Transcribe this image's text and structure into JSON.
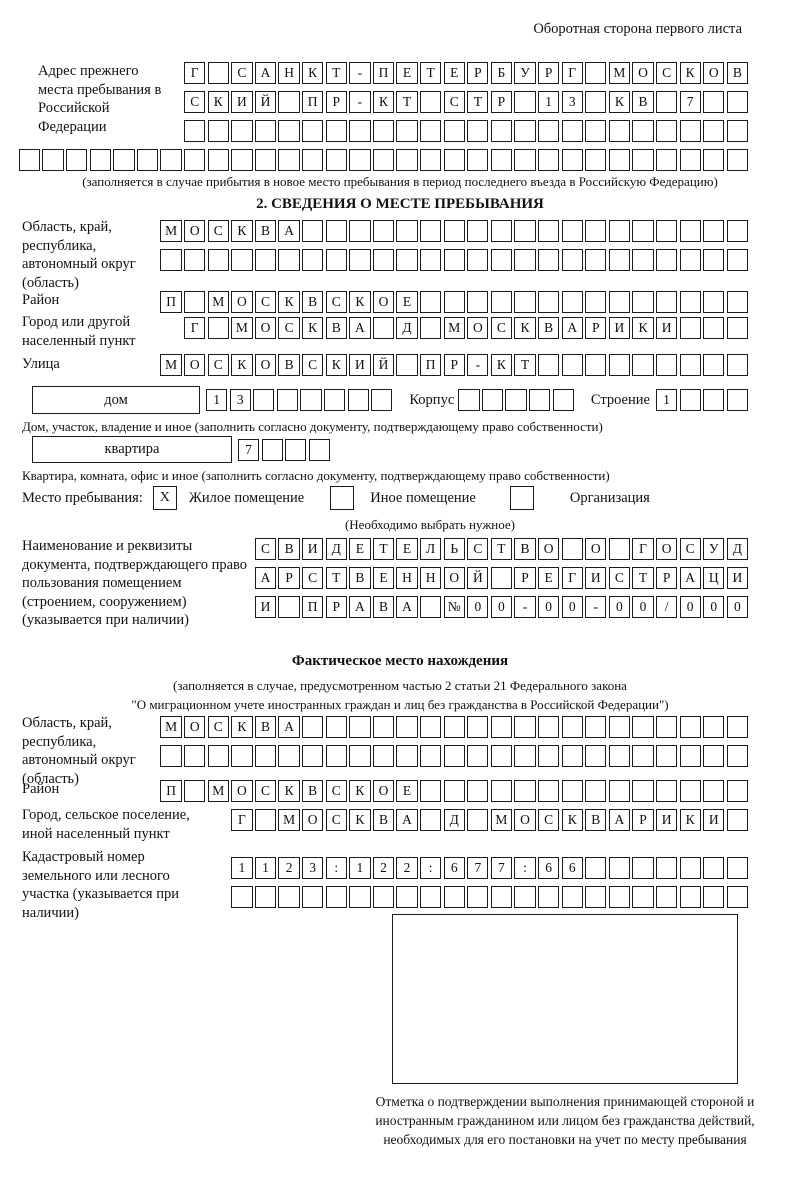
{
  "header": {
    "note": "Оборотная сторона первого листа"
  },
  "prev_address": {
    "label": "Адрес прежнего места пребывания в Российской Федерации",
    "rows": [
      "Г САНКТ-ПЕТЕРБУРГ МОСКОВ",
      "СКИЙ ПР-КТ СТР 13 КВ 7",
      "",
      ""
    ],
    "note": "(заполняется в случае прибытия в новое место пребывания в период последнего въезда в Российскую Федерацию)"
  },
  "section2": {
    "title": "2. СВЕДЕНИЯ О МЕСТЕ ПРЕБЫВАНИЯ",
    "region": {
      "label": "Область, край, республика, автономный округ (область)",
      "row1": "МОСКВА",
      "row2": ""
    },
    "district": {
      "label": "Район",
      "row": "П МОСКВСКОЕ"
    },
    "city": {
      "label": "Город или другой населенный пункт",
      "row": "Г МОСКВА Д МОСКВАРИКИ"
    },
    "street": {
      "label": "Улица",
      "row": "МОСКОВСКИЙ ПР-КТ"
    },
    "house": {
      "box_label": "дом",
      "cells": "13",
      "korpus_label": "Корпус",
      "korpus_cells": "",
      "stroenie_label": "Строение",
      "stroenie_cells": "1",
      "note": "Дом, участок, владение и иное (заполнить согласно документу, подтверждающему право собственности)"
    },
    "apartment": {
      "box_label": "квартира",
      "cells": "7",
      "note": "Квартира, комната, офис и иное (заполнить согласно документу, подтверждающему право собственности)"
    },
    "stay_type": {
      "label": "Место пребывания:",
      "checkbox1": "X",
      "option1": "Жилое помещение",
      "checkbox2": "",
      "option2": "Иное помещение",
      "checkbox3": "",
      "option3": "Организация",
      "note": "(Необходимо выбрать нужное)"
    },
    "document": {
      "label": "Наименование и реквизиты документа, подтверждающего право пользования помещением (строением, сооружением) (указывается при наличии)",
      "rows": [
        "СВИДЕТЕЛЬСТВО О ГОСУД",
        "АРСТВЕННОЙ РЕГИСТРАЦИ",
        "И ПРАВА №00-00-00/000"
      ]
    }
  },
  "actual": {
    "title": "Фактическое место нахождения",
    "note1": "(заполняется в случае, предусмотренном частью 2 статьи 21 Федерального закона",
    "note2": "\"О миграционном учете иностранных граждан и лиц без гражданства в Российской Федерации\")",
    "region": {
      "label": "Область, край, республика, автономный округ (область)",
      "row1": "МОСКВА",
      "row2": ""
    },
    "district": {
      "label": "Район",
      "row": "П МОСКВСКОЕ"
    },
    "city": {
      "label": "Город, сельское поселение, иной населенный пункт",
      "row": "Г МОСКВА Д МОСКВАРИКИ"
    },
    "cadastral": {
      "label": "Кадастровый номер земельного или лесного участка (указывается при наличии)",
      "row1": "1123:122:677:66",
      "row2": ""
    },
    "stamp_caption": "Отметка о подтверждении выполнения принимающей стороной и иностранным гражданином или лицом без гражданства действий, необходимых для его постановки на учет по месту пребывания"
  }
}
